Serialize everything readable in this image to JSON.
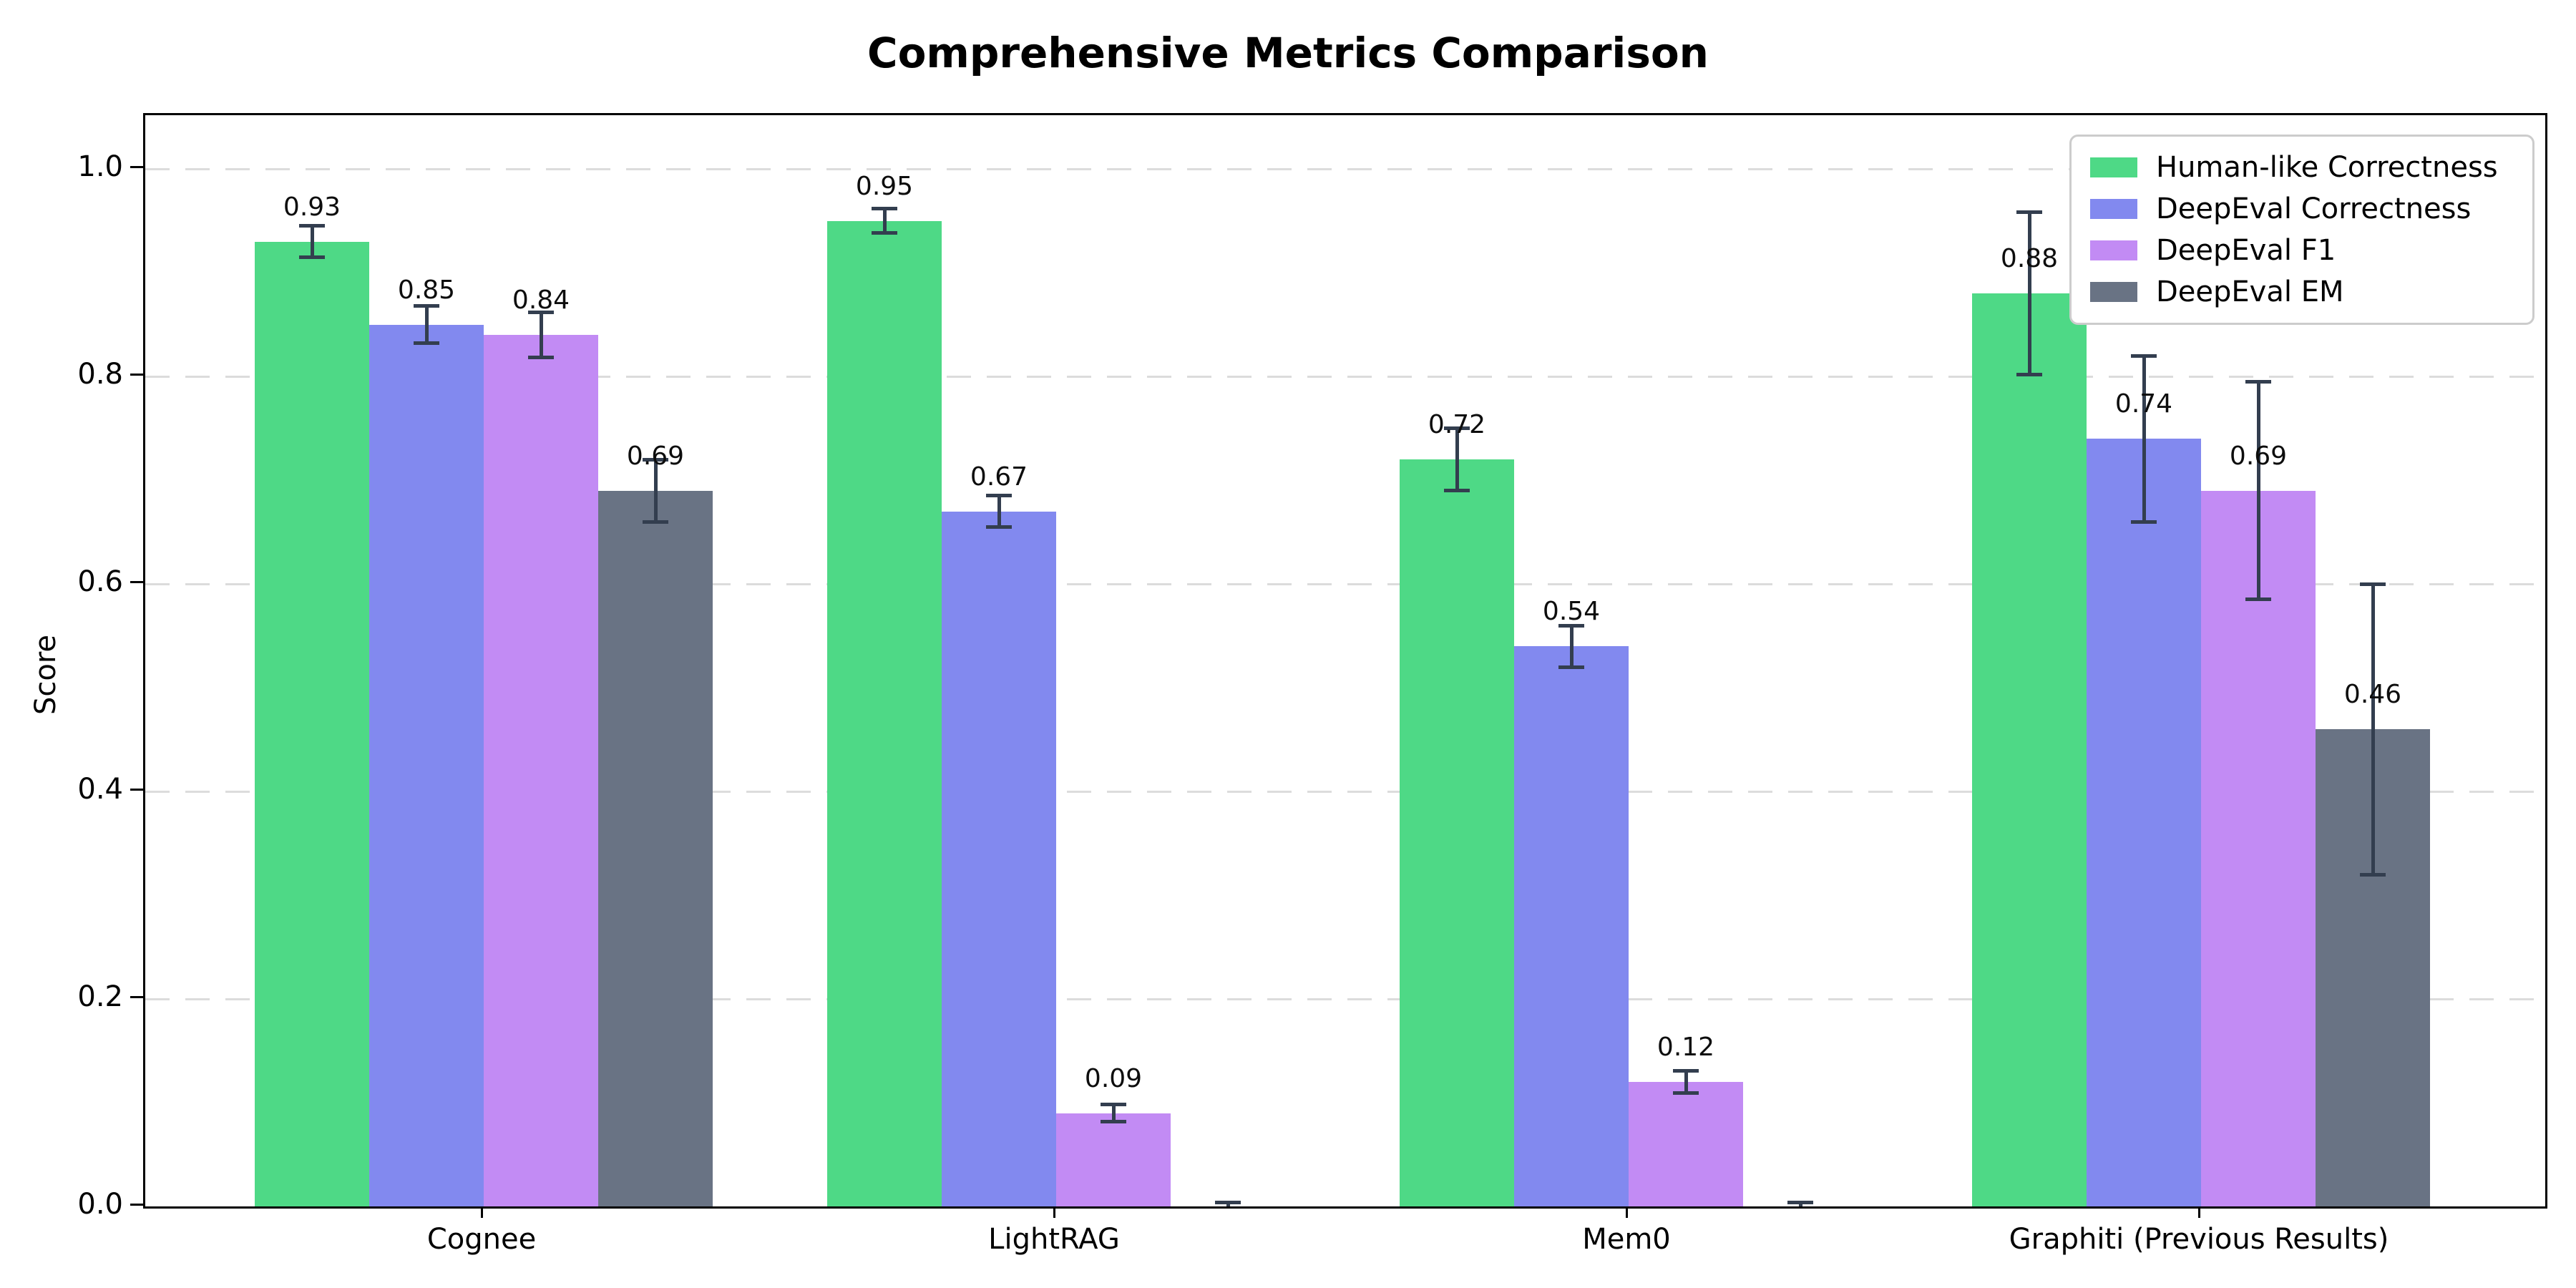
{
  "title": "Comprehensive Metrics Comparison",
  "chart_data": {
    "type": "bar",
    "title": "Comprehensive Metrics Comparison",
    "xlabel": "",
    "ylabel": "Score",
    "ylim": [
      0,
      1.05
    ],
    "grid": "horizontal dashed",
    "legend_position": "upper right",
    "error_bar_color": "#333E4F",
    "background_color": "#ffffff",
    "y_ticks": [
      "0.0",
      "0.2",
      "0.4",
      "0.6",
      "0.8",
      "1.0"
    ],
    "y_tick_values": [
      0.0,
      0.2,
      0.4,
      0.6,
      0.8,
      1.0
    ],
    "categories": [
      "Cognee",
      "LightRAG",
      "Mem0",
      "Graphiti (Previous Results)"
    ],
    "series": [
      {
        "name": "Human-like Correctness",
        "color": "#4ED986",
        "values": [
          0.93,
          0.95,
          0.72,
          0.88
        ],
        "errors": [
          0.015,
          0.012,
          0.03,
          0.078
        ],
        "labels": [
          "0.93",
          "0.95",
          "0.72",
          "0.88"
        ]
      },
      {
        "name": "DeepEval Correctness",
        "color": "#8289EF",
        "values": [
          0.85,
          0.67,
          0.54,
          0.74
        ],
        "errors": [
          0.018,
          0.015,
          0.02,
          0.08
        ],
        "labels": [
          "0.85",
          "0.67",
          "0.54",
          "0.74"
        ]
      },
      {
        "name": "DeepEval F1",
        "color": "#C28BF4",
        "values": [
          0.84,
          0.09,
          0.12,
          0.69
        ],
        "errors": [
          0.022,
          0.008,
          0.011,
          0.105
        ],
        "labels": [
          "0.84",
          "0.09",
          "0.12",
          "0.69"
        ]
      },
      {
        "name": "DeepEval EM",
        "color": "#697384",
        "values": [
          0.69,
          0.0,
          0.0,
          0.46
        ],
        "errors": [
          0.03,
          0.004,
          0.004,
          0.14
        ],
        "labels": [
          "0.69",
          "",
          "",
          "0.46"
        ]
      }
    ]
  }
}
